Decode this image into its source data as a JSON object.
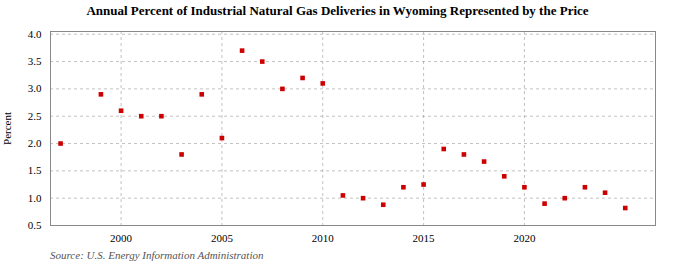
{
  "chart_data": {
    "type": "scatter",
    "title": "Annual Percent of Industrial Natural Gas Deliveries in Wyoming Represented by the Price",
    "ylabel": "Percent",
    "caption": "Source: U.S. Energy Information Administration",
    "color": "#cc0000",
    "marker": "square",
    "grid": true,
    "xlim": [
      1996.5,
      2026.5
    ],
    "ylim": [
      0.5,
      4.05
    ],
    "xticks": [
      2000,
      2005,
      2010,
      2015,
      2020
    ],
    "yticks": [
      0.5,
      {
        "value": 1,
        "label": "1.0"
      },
      1.5,
      {
        "value": 2,
        "label": "2.0"
      },
      2.5,
      {
        "value": 3,
        "label": "3.0"
      },
      3.5,
      {
        "value": 4,
        "label": "4.0"
      }
    ],
    "x": [
      1997,
      1999,
      2000,
      2001,
      2002,
      2003,
      2004,
      2005,
      2006,
      2007,
      2008,
      2009,
      2010,
      2011,
      2012,
      2013,
      2014,
      2015,
      2016,
      2017,
      2018,
      2019,
      2020,
      2021,
      2022,
      2023,
      2024,
      2025
    ],
    "values": [
      2.0,
      2.9,
      2.6,
      2.5,
      2.5,
      1.8,
      2.9,
      2.1,
      3.7,
      3.5,
      3.0,
      3.2,
      3.1,
      1.05,
      1.0,
      0.88,
      1.2,
      1.25,
      1.9,
      1.8,
      1.67,
      1.4,
      1.2,
      0.9,
      1.0,
      1.2,
      1.1,
      0.82
    ]
  }
}
